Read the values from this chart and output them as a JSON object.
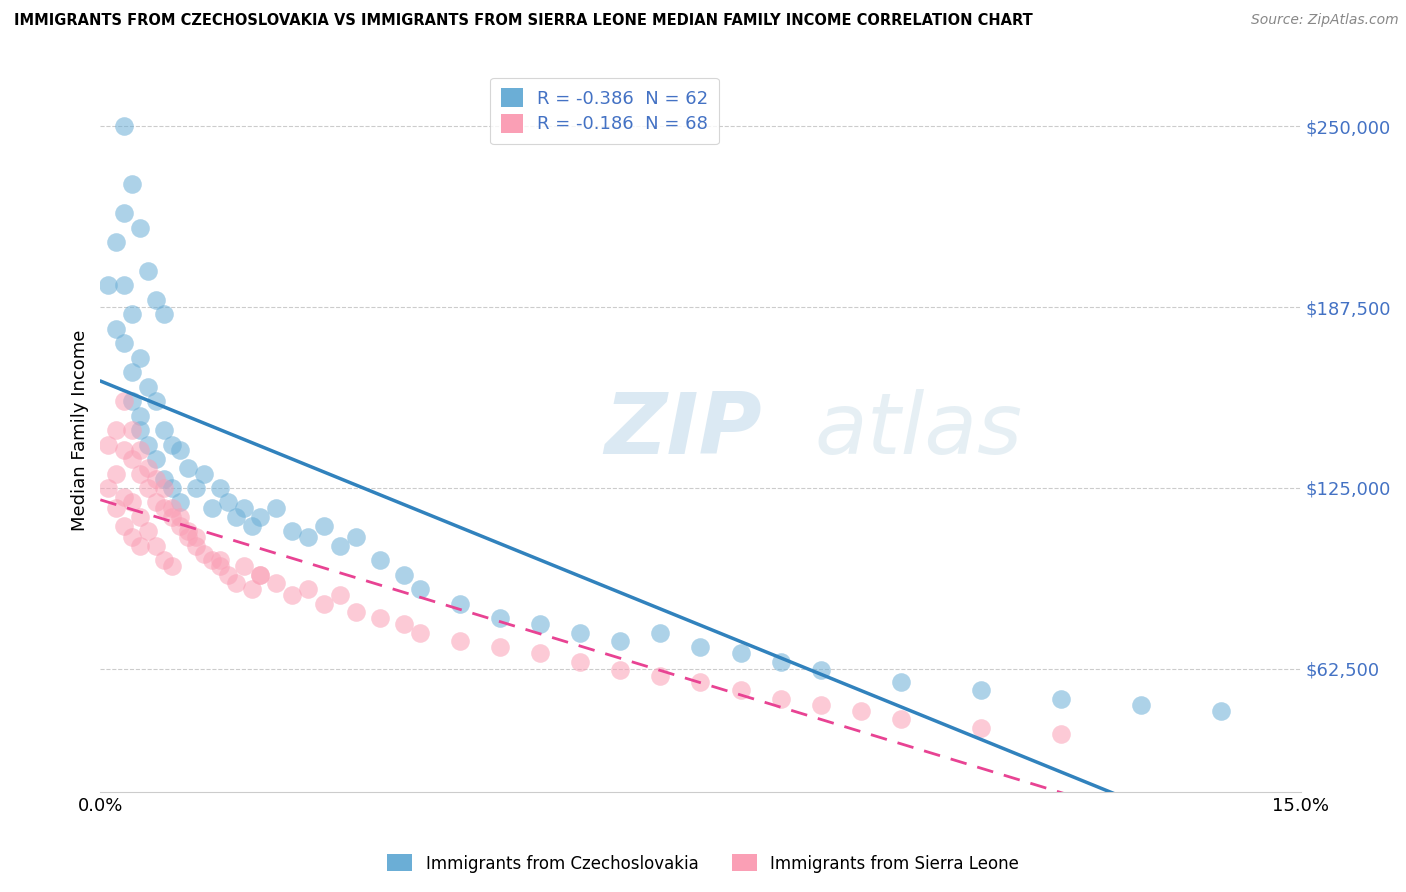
{
  "title": "IMMIGRANTS FROM CZECHOSLOVAKIA VS IMMIGRANTS FROM SIERRA LEONE MEDIAN FAMILY INCOME CORRELATION CHART",
  "source": "Source: ZipAtlas.com",
  "ylabel": "Median Family Income",
  "y_ticks": [
    62500,
    125000,
    187500,
    250000
  ],
  "y_tick_labels": [
    "$62,500",
    "$125,000",
    "$187,500",
    "$250,000"
  ],
  "xlim": [
    0.0,
    0.15
  ],
  "ylim": [
    20000,
    270000
  ],
  "color_czech": "#6baed6",
  "color_sierra": "#fa9fb5",
  "line_color_czech": "#3182bd",
  "line_color_sierra": "#e84393",
  "legend_R_czech": "-0.386",
  "legend_N_czech": "62",
  "legend_R_sierra": "-0.186",
  "legend_N_sierra": "68",
  "watermark": "ZIPatlas",
  "czech_x": [
    0.001,
    0.002,
    0.002,
    0.003,
    0.003,
    0.003,
    0.004,
    0.004,
    0.004,
    0.005,
    0.005,
    0.005,
    0.006,
    0.006,
    0.007,
    0.007,
    0.008,
    0.008,
    0.009,
    0.009,
    0.01,
    0.01,
    0.011,
    0.012,
    0.013,
    0.014,
    0.015,
    0.016,
    0.017,
    0.018,
    0.019,
    0.02,
    0.022,
    0.024,
    0.026,
    0.028,
    0.03,
    0.032,
    0.035,
    0.038,
    0.04,
    0.045,
    0.05,
    0.055,
    0.06,
    0.065,
    0.07,
    0.075,
    0.08,
    0.085,
    0.09,
    0.1,
    0.11,
    0.12,
    0.13,
    0.14,
    0.003,
    0.004,
    0.005,
    0.006,
    0.007,
    0.008
  ],
  "czech_y": [
    195000,
    210000,
    180000,
    220000,
    195000,
    175000,
    185000,
    165000,
    155000,
    170000,
    150000,
    145000,
    160000,
    140000,
    155000,
    135000,
    145000,
    128000,
    140000,
    125000,
    138000,
    120000,
    132000,
    125000,
    130000,
    118000,
    125000,
    120000,
    115000,
    118000,
    112000,
    115000,
    118000,
    110000,
    108000,
    112000,
    105000,
    108000,
    100000,
    95000,
    90000,
    85000,
    80000,
    78000,
    75000,
    72000,
    75000,
    70000,
    68000,
    65000,
    62000,
    58000,
    55000,
    52000,
    50000,
    48000,
    250000,
    230000,
    215000,
    200000,
    190000,
    185000
  ],
  "sierra_x": [
    0.001,
    0.001,
    0.002,
    0.002,
    0.002,
    0.003,
    0.003,
    0.003,
    0.004,
    0.004,
    0.004,
    0.005,
    0.005,
    0.005,
    0.006,
    0.006,
    0.007,
    0.007,
    0.008,
    0.008,
    0.009,
    0.009,
    0.01,
    0.011,
    0.012,
    0.013,
    0.014,
    0.015,
    0.016,
    0.017,
    0.018,
    0.019,
    0.02,
    0.022,
    0.024,
    0.026,
    0.028,
    0.03,
    0.032,
    0.035,
    0.038,
    0.04,
    0.045,
    0.05,
    0.055,
    0.06,
    0.065,
    0.07,
    0.075,
    0.08,
    0.085,
    0.09,
    0.095,
    0.1,
    0.11,
    0.12,
    0.003,
    0.004,
    0.005,
    0.006,
    0.007,
    0.008,
    0.009,
    0.01,
    0.011,
    0.012,
    0.015,
    0.02
  ],
  "sierra_y": [
    140000,
    125000,
    145000,
    130000,
    118000,
    138000,
    122000,
    112000,
    135000,
    120000,
    108000,
    130000,
    115000,
    105000,
    125000,
    110000,
    120000,
    105000,
    118000,
    100000,
    115000,
    98000,
    112000,
    108000,
    105000,
    102000,
    100000,
    98000,
    95000,
    92000,
    98000,
    90000,
    95000,
    92000,
    88000,
    90000,
    85000,
    88000,
    82000,
    80000,
    78000,
    75000,
    72000,
    70000,
    68000,
    65000,
    62000,
    60000,
    58000,
    55000,
    52000,
    50000,
    48000,
    45000,
    42000,
    40000,
    155000,
    145000,
    138000,
    132000,
    128000,
    125000,
    118000,
    115000,
    110000,
    108000,
    100000,
    95000
  ]
}
